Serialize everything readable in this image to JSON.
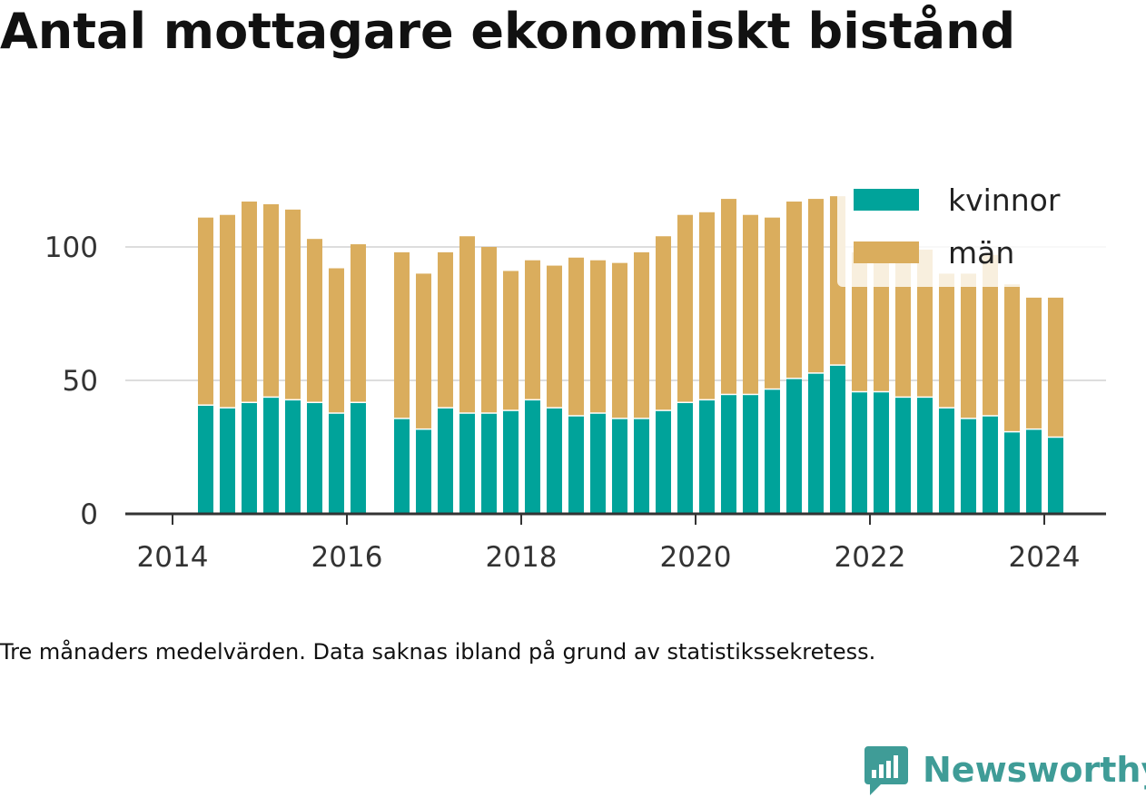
{
  "title": "Antal mottagare ekonomiskt bistånd",
  "note": "Tre månaders medelvärden. Data saknas ibland på grund av statistikssekretess.",
  "brand": {
    "name": "Newsworthy",
    "color": "#3f9c97",
    "icon": "newsworthy-chart-icon"
  },
  "chart_data": {
    "type": "bar",
    "stacked": true,
    "x_unit": "year",
    "x_ticks": [
      "2014",
      "2016",
      "2018",
      "2020",
      "2022",
      "2024"
    ],
    "y_ticks": [
      "0",
      "50",
      "100"
    ],
    "ylim": [
      0,
      125
    ],
    "grid": true,
    "legend_position": "top-right",
    "categories": [
      "2014-05",
      "2014-08",
      "2014-11",
      "2015-02",
      "2015-05",
      "2015-08",
      "2015-11",
      "2016-02",
      "2016-08",
      "2016-11",
      "2017-02",
      "2017-05",
      "2017-08",
      "2017-11",
      "2018-02",
      "2018-05",
      "2018-08",
      "2018-11",
      "2019-02",
      "2019-05",
      "2019-08",
      "2019-11",
      "2020-02",
      "2020-05",
      "2020-08",
      "2020-11",
      "2021-02",
      "2021-05",
      "2021-08",
      "2021-11",
      "2022-02",
      "2022-05",
      "2022-08",
      "2022-11",
      "2023-02",
      "2023-05",
      "2023-08",
      "2023-11",
      "2024-02"
    ],
    "x": [
      2014.38,
      2014.63,
      2014.88,
      2015.13,
      2015.38,
      2015.63,
      2015.88,
      2016.13,
      2016.63,
      2016.88,
      2017.13,
      2017.38,
      2017.63,
      2017.88,
      2018.13,
      2018.38,
      2018.63,
      2018.88,
      2019.13,
      2019.38,
      2019.63,
      2019.88,
      2020.13,
      2020.38,
      2020.63,
      2020.88,
      2021.13,
      2021.38,
      2021.63,
      2021.88,
      2022.13,
      2022.38,
      2022.63,
      2022.88,
      2023.13,
      2023.38,
      2023.63,
      2023.88,
      2024.13
    ],
    "series": [
      {
        "name": "kvinnor",
        "color": "#00a39a",
        "values": [
          41,
          40,
          42,
          44,
          43,
          42,
          38,
          42,
          36,
          32,
          40,
          38,
          38,
          39,
          43,
          40,
          37,
          38,
          36,
          36,
          39,
          42,
          43,
          45,
          45,
          47,
          51,
          53,
          56,
          46,
          46,
          44,
          44,
          40,
          36,
          37,
          31,
          32,
          29
        ]
      },
      {
        "name": "män",
        "color": "#daad5d",
        "values": [
          70,
          72,
          75,
          72,
          71,
          61,
          54,
          59,
          62,
          58,
          58,
          66,
          62,
          52,
          52,
          53,
          59,
          57,
          58,
          62,
          65,
          70,
          70,
          73,
          67,
          64,
          66,
          65,
          63,
          52,
          48,
          54,
          55,
          50,
          54,
          60,
          55,
          49,
          52
        ]
      }
    ]
  }
}
